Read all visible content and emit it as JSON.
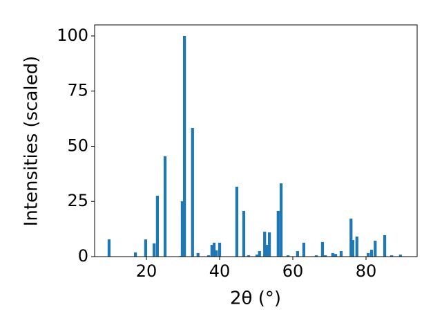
{
  "chart_data": {
    "type": "bar",
    "x_label": "2θ (°)",
    "y_label": "Intensities (scaled)",
    "color": "#1f77b4",
    "x": [
      9.8,
      17.0,
      19.8,
      22.1,
      23.0,
      25.1,
      29.4,
      29.8,
      30.4,
      32.6,
      34.1,
      37.0,
      37.9,
      38.5,
      39.1,
      40.0,
      44.7,
      46.6,
      47.9,
      50.2,
      50.9,
      52.3,
      52.8,
      53.6,
      56.0,
      56.8,
      58.7,
      61.3,
      63.0,
      66.4,
      68.1,
      68.9,
      70.9,
      71.7,
      73.2,
      75.9,
      76.4,
      77.5,
      80.6,
      81.5,
      82.5,
      85.1,
      87.0,
      89.4
    ],
    "values": [
      7.8,
      1.9,
      7.8,
      6.0,
      27.6,
      45.5,
      0.3,
      25.1,
      100,
      58.3,
      1.6,
      0.6,
      5.3,
      6.3,
      2.8,
      6.3,
      31.7,
      20.7,
      0.6,
      0.9,
      2.5,
      11.3,
      5.3,
      11.0,
      20.7,
      33.2,
      0.6,
      2.5,
      6.3,
      0.6,
      6.6,
      0.6,
      1.6,
      1.2,
      2.5,
      17.2,
      7.5,
      9.1,
      1.6,
      3.1,
      7.2,
      9.7,
      0.6,
      0.9
    ],
    "xlim": [
      5.85,
      93.96
    ],
    "ylim": [
      0,
      105
    ],
    "xticks": [
      20,
      40,
      60,
      80
    ],
    "yticks": [
      0,
      25,
      50,
      75,
      100
    ]
  }
}
